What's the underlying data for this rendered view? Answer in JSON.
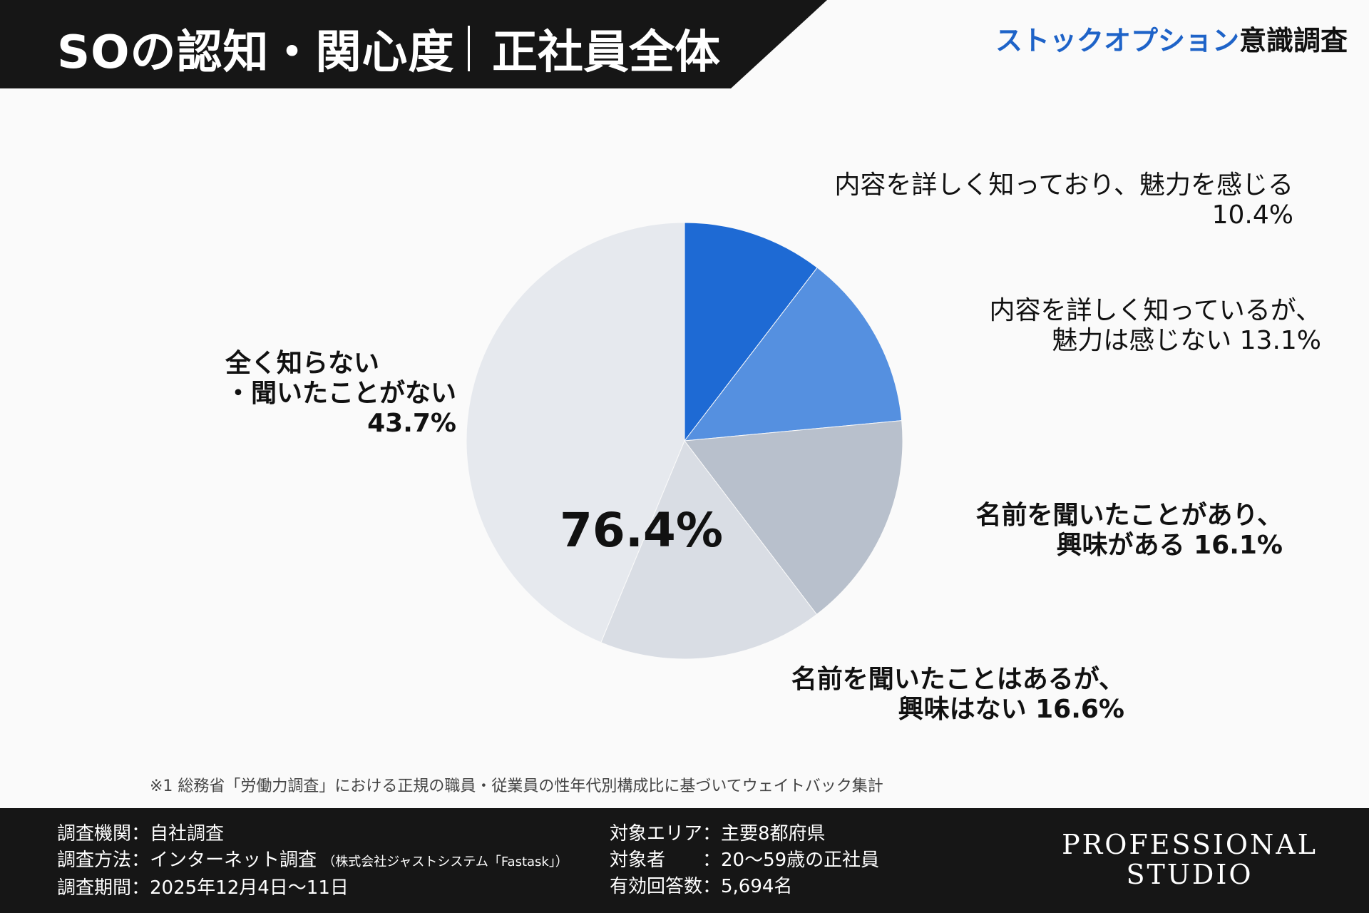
{
  "header": {
    "title_left": "SOの認知・関心度",
    "title_right": "正社員全体",
    "survey_name_blue": "ストックオプション",
    "survey_name_dark": "意識調査"
  },
  "colors": {
    "header_bg": "#161616",
    "accent_blue": "#1e63c8"
  },
  "chart_data": {
    "type": "pie",
    "start": "12 o'clock",
    "direction": "clockwise",
    "center_label": "76.4%",
    "slices": [
      {
        "line1": "内容を詳しく知っており、魅力を感じる",
        "line2": "10.4%",
        "value": 10.4,
        "color": "#1e6ad4"
      },
      {
        "line1": "内容を詳しく知っているが、",
        "line2": "魅力は感じない  13.1%",
        "value": 13.1,
        "color": "#5590e0"
      },
      {
        "line1": "名前を聞いたことがあり、",
        "line2": "興味がある 16.1%",
        "value": 16.1,
        "color": "#b8c0cc"
      },
      {
        "line1": "名前を聞いたことはあるが、",
        "line2": "興味はない  16.6%",
        "value": 16.6,
        "color": "#d9dde4"
      },
      {
        "line1": "全く知らない",
        "line2": "・聞いたことがない",
        "line3": "43.7%",
        "value": 43.7,
        "color": "#e6e9ee"
      }
    ]
  },
  "footnote": "※1 総務省「労働力調査」における正規の職員・従業員の性年代別構成比に基づいてウェイトバック集計",
  "footer": {
    "left": {
      "agency": "調査機関：自社調査",
      "method": "調査方法：インターネット調査",
      "method_note": "（株式会社ジャストシステム「Fastask」）",
      "period": "調査期間：2025年12月4日〜11日"
    },
    "middle": {
      "area": "対象エリア：主要8都府県",
      "target": "対象者　　：20〜59歳の正社員",
      "responses": "有効回答数：5,694名"
    },
    "brand_line1": "PROFESSIONAL",
    "brand_line2": "STUDIO"
  }
}
